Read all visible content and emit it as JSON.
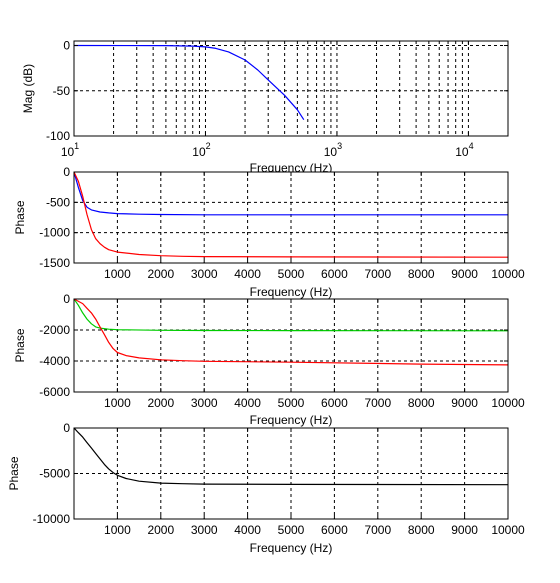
{
  "chart_data": [
    {
      "type": "line",
      "xscale": "log",
      "xlim": [
        10,
        20000
      ],
      "ylim": [
        -100,
        5
      ],
      "xticks": [
        10,
        100,
        1000,
        10000
      ],
      "xtick_labels": [
        {
          "base": "10",
          "exp": "1"
        },
        {
          "base": "10",
          "exp": "2"
        },
        {
          "base": "10",
          "exp": "3"
        },
        {
          "base": "10",
          "exp": "4"
        }
      ],
      "yticks": [
        0,
        -50,
        -100
      ],
      "ytick_labels": [
        "0",
        "-50",
        "-100"
      ],
      "xlabel": "Frequency (Hz)",
      "ylabel": "Mag (dB)",
      "grid": true,
      "series": [
        {
          "color": "#0000ff",
          "x": [
            10,
            50,
            80,
            100,
            120,
            150,
            200,
            250,
            300,
            400,
            500,
            560
          ],
          "y": [
            0,
            -0.1,
            -0.6,
            -1.5,
            -3.2,
            -7,
            -16,
            -27,
            -38,
            -55,
            -71,
            -82
          ]
        }
      ]
    },
    {
      "type": "line",
      "xlim": [
        0,
        10000
      ],
      "ylim": [
        -1500,
        0
      ],
      "xticks": [
        1000,
        2000,
        3000,
        4000,
        5000,
        6000,
        7000,
        8000,
        9000,
        10000
      ],
      "xtick_labels": [
        "1000",
        "2000",
        "3000",
        "4000",
        "5000",
        "6000",
        "7000",
        "8000",
        "9000",
        "10000"
      ],
      "yticks": [
        0,
        -500,
        -1000,
        -1500
      ],
      "ytick_labels": [
        "0",
        "-500",
        "-1000",
        "-1500"
      ],
      "xlabel": "Frequency (Hz)",
      "ylabel": "Phase",
      "grid": true,
      "series": [
        {
          "color": "#0000ff",
          "x": [
            0,
            100,
            200,
            300,
            400,
            600,
            800,
            1000,
            1500,
            2000,
            3000,
            5000,
            10000
          ],
          "y": [
            0,
            -250,
            -470,
            -580,
            -625,
            -660,
            -675,
            -685,
            -695,
            -700,
            -705,
            -705,
            -705
          ]
        },
        {
          "color": "#ff0000",
          "x": [
            0,
            100,
            200,
            300,
            400,
            500,
            600,
            700,
            800,
            1000,
            1500,
            2000,
            2500,
            3000,
            5000,
            10000
          ],
          "y": [
            0,
            -150,
            -400,
            -700,
            -950,
            -1100,
            -1180,
            -1240,
            -1280,
            -1320,
            -1360,
            -1380,
            -1390,
            -1395,
            -1400,
            -1405
          ]
        }
      ]
    },
    {
      "type": "line",
      "xlim": [
        0,
        10000
      ],
      "ylim": [
        -6000,
        0
      ],
      "xticks": [
        1000,
        2000,
        3000,
        4000,
        5000,
        6000,
        7000,
        8000,
        9000,
        10000
      ],
      "xtick_labels": [
        "1000",
        "2000",
        "3000",
        "4000",
        "5000",
        "6000",
        "7000",
        "8000",
        "9000",
        "10000"
      ],
      "yticks": [
        0,
        -2000,
        -4000,
        -6000
      ],
      "ytick_labels": [
        "0",
        "-2000",
        "-4000",
        "-6000"
      ],
      "xlabel": "Frequency (Hz)",
      "ylabel": "Phase",
      "grid": true,
      "series": [
        {
          "color": "#00cc00",
          "x": [
            0,
            100,
            200,
            300,
            400,
            500,
            600,
            800,
            1000,
            2000,
            3000,
            5000,
            10000
          ],
          "y": [
            0,
            -400,
            -900,
            -1300,
            -1600,
            -1800,
            -1880,
            -1950,
            -1980,
            -2020,
            -2030,
            -2040,
            -2050
          ]
        },
        {
          "color": "#ff0000",
          "x": [
            0,
            200,
            300,
            400,
            500,
            600,
            700,
            800,
            900,
            1000,
            1200,
            1500,
            2000,
            2500,
            3000,
            5000,
            8000,
            10000
          ],
          "y": [
            0,
            -300,
            -600,
            -900,
            -1300,
            -1800,
            -2300,
            -2800,
            -3200,
            -3450,
            -3650,
            -3800,
            -3920,
            -3980,
            -4020,
            -4080,
            -4200,
            -4250
          ]
        }
      ]
    },
    {
      "type": "line",
      "xlim": [
        0,
        10000
      ],
      "ylim": [
        -10000,
        0
      ],
      "xticks": [
        1000,
        2000,
        3000,
        4000,
        5000,
        6000,
        7000,
        8000,
        9000,
        10000
      ],
      "xtick_labels": [
        "1000",
        "2000",
        "3000",
        "4000",
        "5000",
        "6000",
        "7000",
        "8000",
        "9000",
        "10000"
      ],
      "yticks": [
        0,
        -5000,
        -10000
      ],
      "ytick_labels": [
        "0",
        "-5000",
        "-10000"
      ],
      "xlabel": "Frequency (Hz)",
      "ylabel": "Phase",
      "grid": true,
      "series": [
        {
          "color": "#000000",
          "x": [
            0,
            100,
            200,
            300,
            400,
            500,
            600,
            700,
            800,
            900,
            1000,
            1200,
            1500,
            2000,
            2500,
            3000,
            5000,
            10000
          ],
          "y": [
            0,
            -500,
            -1000,
            -1600,
            -2200,
            -2800,
            -3400,
            -4000,
            -4500,
            -4900,
            -5200,
            -5550,
            -5850,
            -6050,
            -6120,
            -6160,
            -6200,
            -6230
          ]
        }
      ]
    }
  ]
}
